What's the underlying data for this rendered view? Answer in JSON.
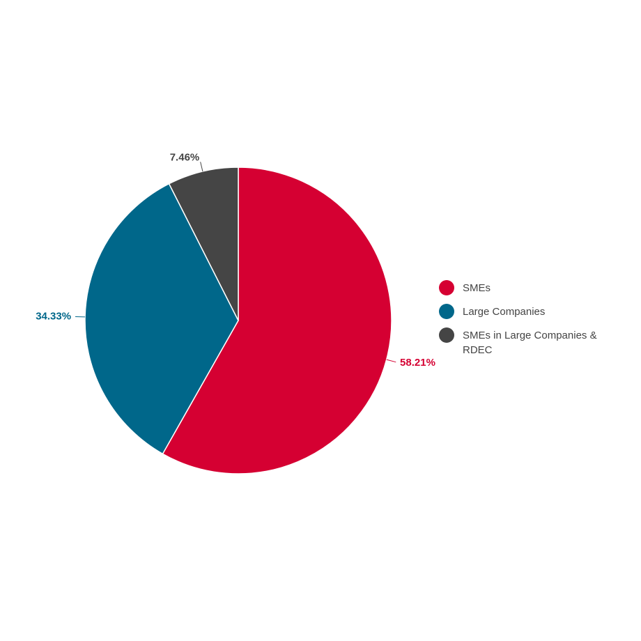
{
  "chart_data": {
    "type": "pie",
    "categories": [
      "SMEs",
      "Large Companies",
      "SMEs in Large Companies & RDEC"
    ],
    "values": [
      58.21,
      34.33,
      7.46
    ],
    "value_labels": [
      "58.21%",
      "34.33%",
      "7.46%"
    ],
    "colors": [
      "#d50032",
      "#00678a",
      "#454545"
    ]
  }
}
